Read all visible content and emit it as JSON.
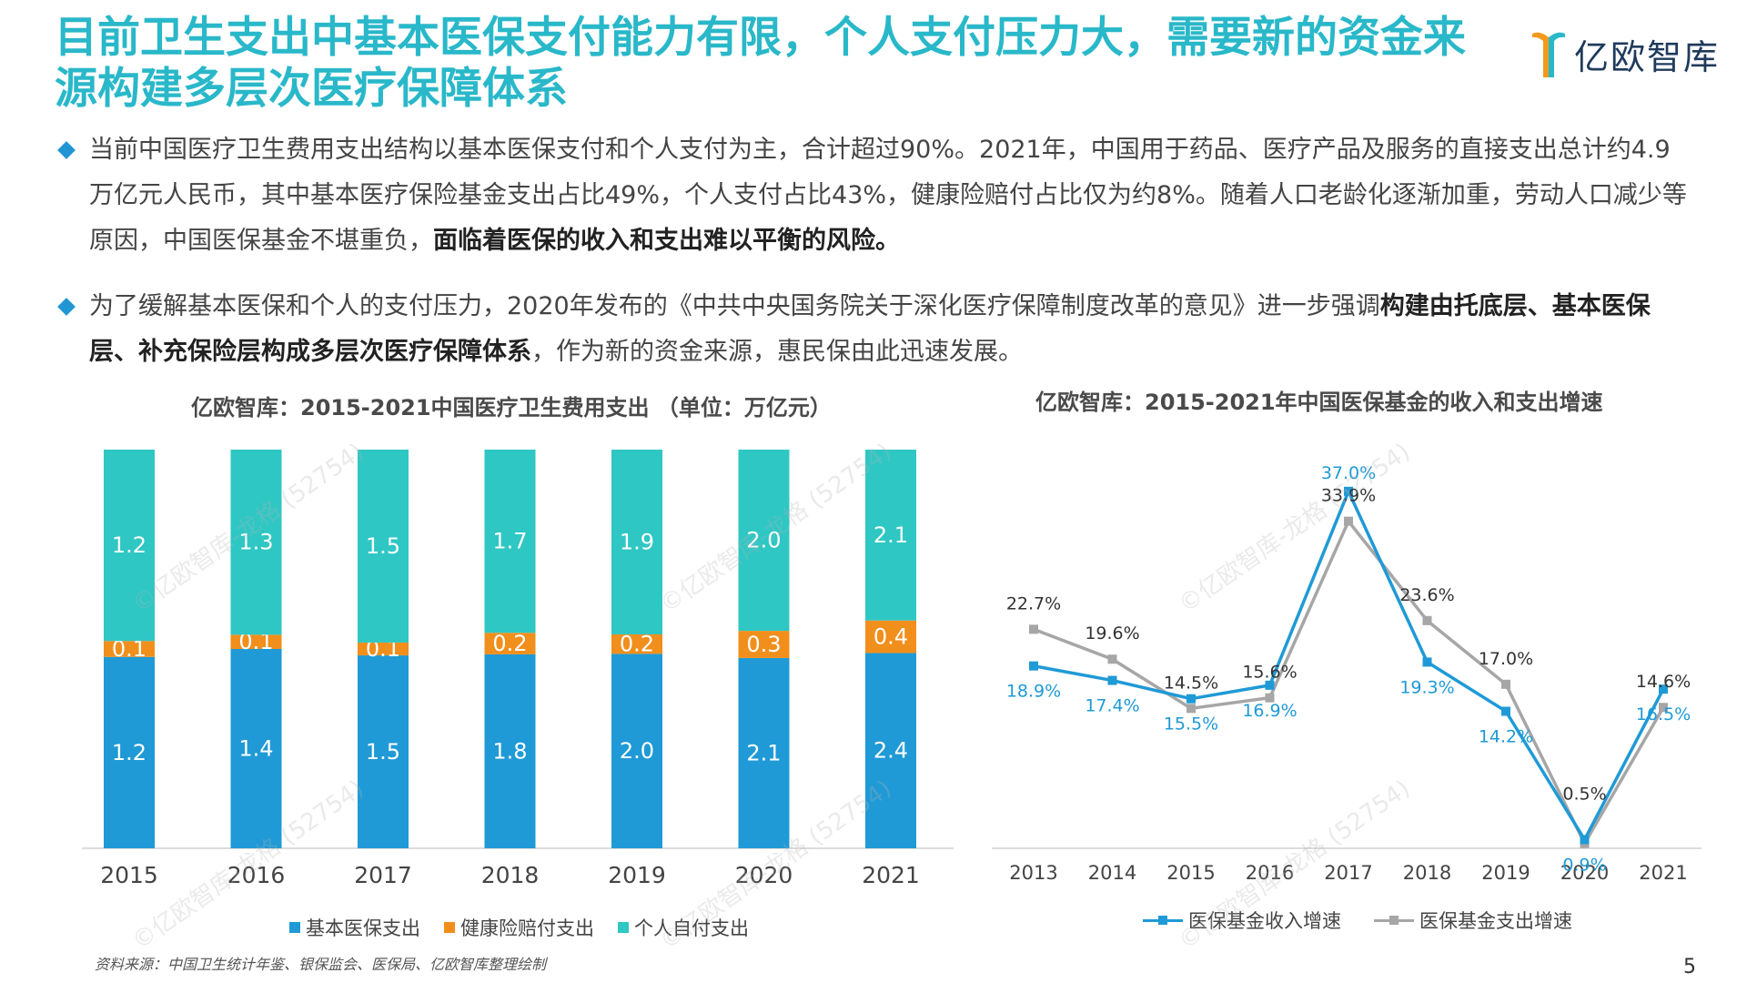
{
  "title": "目前卫生支出中基本医保支付能力有限，个人支付压力大，需要新的资金来源构建多层次医疗保障体系",
  "logo": {
    "text": "亿欧智库"
  },
  "bullets": [
    {
      "text": "当前中国医疗卫生费用支出结构以基本医保支付和个人支付为主，合计超过90%。2021年，中国用于药品、医疗产品及服务的直接支出总计约4.9万亿元人民币，其中基本医疗保险基金支出占比49%，个人支付占比43%，健康险赔付占比仅为约8%。随着人口老龄化逐渐加重，劳动人口减少等原因，中国医保基金不堪重负，",
      "bold": "面临着医保的收入和支出难以平衡的风险。",
      "tail": ""
    },
    {
      "text": "为了缓解基本医保和个人的支付压力，2020年发布的《中共中央国务院关于深化医疗保障制度改革的意见》进一步强调",
      "bold": "构建由托底层、基本医保层、补充保险层构成多层次医疗保障体系",
      "tail": "，作为新的资金来源，惠民保由此迅速发展。"
    }
  ],
  "source": "资料来源：中国卫生统计年鉴、银保监会、医保局、亿欧智库整理绘制",
  "page_number": "5",
  "watermark": "©亿欧智库-龙格 (52754)",
  "colors": {
    "title": "#29b8c9",
    "basic": "#1f9ad6",
    "insurance": "#f18f1c",
    "personal": "#2ec7c4",
    "income_line": "#1f9ad6",
    "expense_line": "#a6a6a6"
  },
  "chart_data": [
    {
      "type": "bar",
      "stacked": true,
      "title": "亿欧智库：2015-2021中国医疗卫生费用支出 （单位：万亿元）",
      "categories": [
        "2015",
        "2016",
        "2017",
        "2018",
        "2019",
        "2020",
        "2021"
      ],
      "series": [
        {
          "name": "基本医保支出",
          "values": [
            1.2,
            1.4,
            1.5,
            1.8,
            2.0,
            2.1,
            2.4
          ]
        },
        {
          "name": "健康险赔付支出",
          "values": [
            0.1,
            0.1,
            0.1,
            0.2,
            0.2,
            0.3,
            0.4
          ]
        },
        {
          "name": "个人自付支出",
          "values": [
            1.2,
            1.3,
            1.5,
            1.7,
            1.9,
            2.0,
            2.1
          ]
        }
      ],
      "legend_position": "bottom",
      "note": "bars drawn as 100% stacked shares"
    },
    {
      "type": "line",
      "title": "亿欧智库：2015-2021年中国医保基金的收入和支出增速",
      "categories": [
        "2013",
        "2014",
        "2015",
        "2016",
        "2017",
        "2018",
        "2019",
        "2020",
        "2021"
      ],
      "series": [
        {
          "name": "医保基金收入增速",
          "values": [
            18.9,
            17.4,
            15.5,
            16.9,
            37.0,
            19.3,
            14.2,
            0.9,
            16.5
          ],
          "labels": [
            "18.9%",
            "17.4%",
            "15.5%",
            "16.9%",
            "37.0%",
            "19.3%",
            "14.2%",
            "0.9%",
            "16.5%"
          ]
        },
        {
          "name": "医保基金支出增速",
          "values": [
            22.7,
            19.6,
            14.5,
            15.6,
            33.9,
            23.6,
            17.0,
            0.5,
            14.6
          ],
          "labels": [
            "22.7%",
            "19.6%",
            "14.5%",
            "15.6%",
            "33.9%",
            "23.6%",
            "17.0%",
            "0.5%",
            "14.6%"
          ]
        }
      ],
      "ylim": [
        0,
        40
      ],
      "legend_position": "bottom"
    }
  ]
}
